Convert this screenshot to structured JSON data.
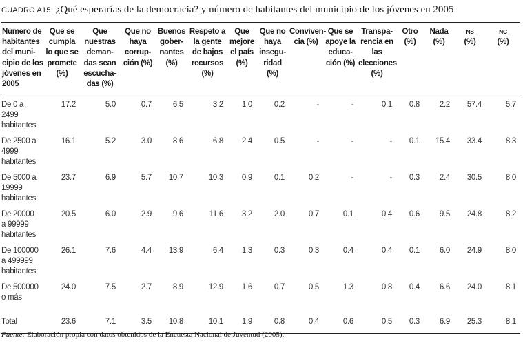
{
  "title": {
    "label": "CUADRO A15.",
    "text": "¿Qué esperarías de la democracia? y número de habitantes del municipio de los jóvenes en 2005"
  },
  "table": {
    "headers": [
      "Número de habitantes del muni-cipio de los jóvenes en 2005",
      "Que se cumpla lo que se promete (%)",
      "Que nuestras deman-das sean escucha-das (%)",
      "Que no haya corrup-ción (%)",
      "Buenos gober-nantes (%)",
      "Respeto a la gente de bajos recursos (%)",
      "Que mejore el país (%)",
      "Que no haya insegu-ridad (%)",
      "Conviven-cia (%)",
      "Que se apoye la educa-ción (%)",
      "Transpa-rencia en las elecciones (%)",
      "Otro (%)",
      "Nada (%)",
      "NS (%)",
      "NC (%)"
    ],
    "rows": [
      [
        "De 0 a 2499 habitantes",
        "17.2",
        "5.0",
        "0.7",
        "6.5",
        "3.2",
        "1.0",
        "0.2",
        "-",
        "-",
        "0.1",
        "0.8",
        "2.2",
        "57.4",
        "5.7"
      ],
      [
        "De 2500 a 4999 habitantes",
        "16.1",
        "5.2",
        "3.0",
        "8.6",
        "6.8",
        "2.4",
        "0.5",
        "-",
        "-",
        "-",
        "0.1",
        "15.4",
        "33.4",
        "8.3"
      ],
      [
        "De 5000 a 19999 habitantes",
        "23.7",
        "6.9",
        "5.7",
        "10.7",
        "10.3",
        "0.9",
        "0.1",
        "0.2",
        "-",
        "-",
        "0.3",
        "2.4",
        "30.5",
        "8.0"
      ],
      [
        "De 20000 a 99999 habitantes",
        "20.5",
        "6.0",
        "2.9",
        "9.6",
        "11.6",
        "3.2",
        "2.0",
        "0.7",
        "0.1",
        "0.4",
        "0.6",
        "9.5",
        "24.8",
        "8.2"
      ],
      [
        "De 100000 a 499999 habitantes",
        "26.1",
        "7.6",
        "4.4",
        "13.9",
        "6.4",
        "1.3",
        "0.3",
        "0.3",
        "0.4",
        "0.4",
        "0.1",
        "6.0",
        "24.9",
        "8.0"
      ],
      [
        "De 500000 o más",
        "24.0",
        "7.5",
        "2.7",
        "8.9",
        "12.9",
        "1.6",
        "0.7",
        "0.5",
        "1.3",
        "0.8",
        "0.4",
        "6.6",
        "24.0",
        "8.1"
      ],
      [
        "Total",
        "23.6",
        "7.1",
        "3.5",
        "10.8",
        "10.1",
        "1.9",
        "0.8",
        "0.4",
        "0.6",
        "0.5",
        "0.3",
        "6.9",
        "25.3",
        "8.1"
      ]
    ]
  },
  "footnote": {
    "label": "Fuente:",
    "text": " Elaboración propia con datos obtenidos de la Encuesta Nacional de Juventud (2005)."
  }
}
